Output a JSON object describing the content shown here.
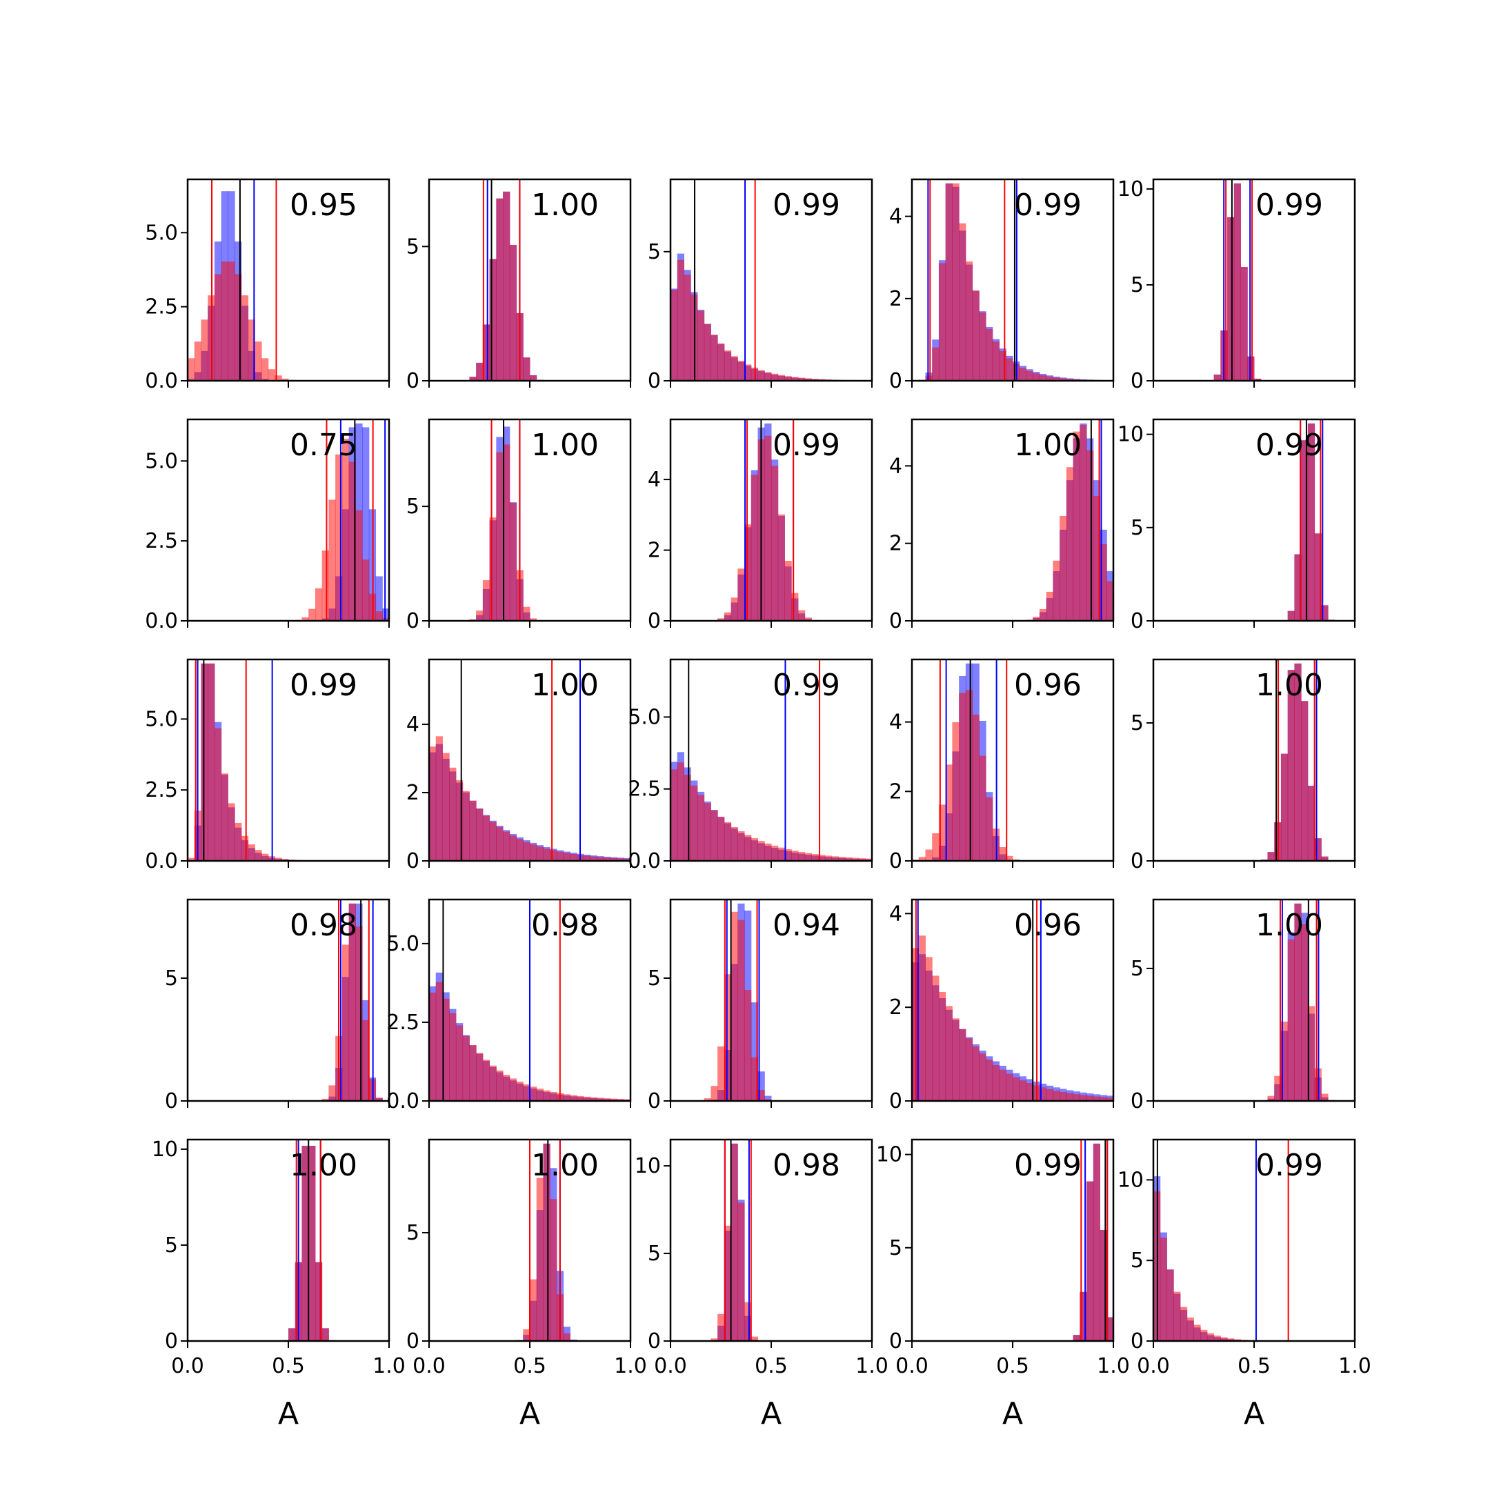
{
  "chart_data": {
    "type": "histogram-grid",
    "rows": 5,
    "cols": 5,
    "xlim": [
      0,
      1
    ],
    "xlabel": "A",
    "x_ticks": [
      "0.0",
      "0.5",
      "1.0"
    ],
    "colors": {
      "blue": "#0000ff",
      "red": "#ff0000",
      "overlap": "#bf3a6a",
      "black": "#000000"
    },
    "series": [
      {
        "color": "blue",
        "description": "histogram + interval lines"
      },
      {
        "color": "red",
        "description": "histogram + interval lines"
      }
    ],
    "panels": [
      {
        "row": 0,
        "col": 0,
        "label": "0.95",
        "ylim": [
          0,
          6.8
        ],
        "yticks": [
          0,
          2.5,
          5
        ],
        "ytick_labels": [
          "0.0",
          "2.5",
          "5.0"
        ],
        "blue": {
          "mean": 0.2,
          "sd": 0.06
        },
        "red": {
          "mean": 0.2,
          "sd": 0.1
        },
        "vlines_blue": [
          0.12,
          0.33
        ],
        "vlines_red": [
          0.12,
          0.44
        ],
        "vlines_black": [
          0.26
        ]
      },
      {
        "row": 0,
        "col": 1,
        "label": "1.00",
        "ylim": [
          0,
          7.5
        ],
        "yticks": [
          0,
          5
        ],
        "ytick_labels": [
          "0",
          "5"
        ],
        "blue": {
          "mean": 0.37,
          "sd": 0.055
        },
        "red": {
          "mean": 0.37,
          "sd": 0.055
        },
        "vlines_blue": [
          0.29,
          0.45
        ],
        "vlines_red": [
          0.27,
          0.45
        ],
        "vlines_black": [
          0.31
        ]
      },
      {
        "row": 0,
        "col": 2,
        "label": "0.99",
        "ylim": [
          0,
          7.8
        ],
        "yticks": [
          0,
          5
        ],
        "ytick_labels": [
          "0",
          "5"
        ],
        "blue": {
          "mean": 0.06,
          "sd": 0.15,
          "skew": true
        },
        "red": {
          "mean": 0.06,
          "sd": 0.16,
          "skew": true
        },
        "vlines_blue": [
          0.37
        ],
        "vlines_red": [
          0.42
        ],
        "vlines_black": [
          0.12
        ]
      },
      {
        "row": 0,
        "col": 3,
        "label": "0.99",
        "ylim": [
          0,
          4.9
        ],
        "yticks": [
          0,
          2,
          4
        ],
        "ytick_labels": [
          "0",
          "2",
          "4"
        ],
        "blue": {
          "mean": 0.2,
          "sd": 0.13,
          "skew": true
        },
        "red": {
          "mean": 0.2,
          "sd": 0.12,
          "skew": true
        },
        "vlines_blue": [
          0.08,
          0.52
        ],
        "vlines_red": [
          0.09,
          0.46
        ],
        "vlines_black": [
          0.51
        ]
      },
      {
        "row": 0,
        "col": 4,
        "label": "0.99",
        "ylim": [
          0,
          10.5
        ],
        "yticks": [
          0,
          5,
          10
        ],
        "ytick_labels": [
          "0",
          "5",
          "10"
        ],
        "blue": {
          "mean": 0.41,
          "sd": 0.035
        },
        "red": {
          "mean": 0.41,
          "sd": 0.035
        },
        "vlines_blue": [
          0.35,
          0.48
        ],
        "vlines_red": [
          0.36,
          0.49
        ],
        "vlines_black": [
          0.39
        ]
      },
      {
        "row": 1,
        "col": 0,
        "label": "0.75",
        "ylim": [
          0,
          6.3
        ],
        "yticks": [
          0,
          2.5,
          5
        ],
        "ytick_labels": [
          "0.0",
          "2.5",
          "5.0"
        ],
        "blue": {
          "mean": 0.85,
          "sd": 0.055
        },
        "red": {
          "mean": 0.78,
          "sd": 0.07
        },
        "vlines_blue": [
          0.76,
          0.98
        ],
        "vlines_red": [
          0.69,
          0.92
        ],
        "vlines_black": [
          0.83
        ]
      },
      {
        "row": 1,
        "col": 1,
        "label": "1.00",
        "ylim": [
          0,
          8.8
        ],
        "yticks": [
          0,
          5
        ],
        "ytick_labels": [
          "0",
          "5"
        ],
        "blue": {
          "mean": 0.37,
          "sd": 0.045
        },
        "red": {
          "mean": 0.37,
          "sd": 0.05
        },
        "vlines_blue": [
          0.31,
          0.45
        ],
        "vlines_red": [
          0.31,
          0.45
        ],
        "vlines_black": [
          0.37
        ]
      },
      {
        "row": 1,
        "col": 2,
        "label": "0.99",
        "ylim": [
          0,
          5.7
        ],
        "yticks": [
          0,
          2,
          4
        ],
        "ytick_labels": [
          "0",
          "2",
          "4"
        ],
        "blue": {
          "mean": 0.47,
          "sd": 0.07
        },
        "red": {
          "mean": 0.47,
          "sd": 0.075
        },
        "vlines_blue": [
          0.37,
          0.61
        ],
        "vlines_red": [
          0.38,
          0.61
        ],
        "vlines_black": [
          0.45
        ]
      },
      {
        "row": 1,
        "col": 3,
        "label": "1.00",
        "ylim": [
          0,
          5.2
        ],
        "yticks": [
          0,
          2,
          4
        ],
        "ytick_labels": [
          "0",
          "2",
          "4"
        ],
        "blue": {
          "mean": 0.85,
          "sd": 0.08
        },
        "red": {
          "mean": 0.84,
          "sd": 0.08
        },
        "vlines_blue": [
          0.94
        ],
        "vlines_red": [
          0.93
        ],
        "vlines_black": [
          0.89
        ]
      },
      {
        "row": 1,
        "col": 4,
        "label": "0.99",
        "ylim": [
          0,
          10.8
        ],
        "yticks": [
          0,
          5,
          10
        ],
        "ytick_labels": [
          "0",
          "5",
          "10"
        ],
        "blue": {
          "mean": 0.77,
          "sd": 0.035
        },
        "red": {
          "mean": 0.77,
          "sd": 0.035
        },
        "vlines_blue": [
          0.73,
          0.84
        ],
        "vlines_red": [
          0.73,
          0.83
        ],
        "vlines_black": [
          0.76
        ]
      },
      {
        "row": 2,
        "col": 0,
        "label": "0.99",
        "ylim": [
          0,
          7.1
        ],
        "yticks": [
          0,
          2.5,
          5
        ],
        "ytick_labels": [
          "0.0",
          "2.5",
          "5.0"
        ],
        "blue": {
          "mean": 0.1,
          "sd": 0.07,
          "skew": true
        },
        "red": {
          "mean": 0.1,
          "sd": 0.08,
          "skew": true
        },
        "vlines_blue": [
          0.05,
          0.42
        ],
        "vlines_red": [
          0.04,
          0.29
        ],
        "vlines_black": [
          0.08
        ]
      },
      {
        "row": 2,
        "col": 1,
        "label": "1.00",
        "ylim": [
          0,
          5.9
        ],
        "yticks": [
          0,
          2,
          4
        ],
        "ytick_labels": [
          "0",
          "2",
          "4"
        ],
        "blue": {
          "mean": 0.05,
          "sd": 0.25,
          "skew": true
        },
        "red": {
          "mean": 0.05,
          "sd": 0.23,
          "skew": true
        },
        "vlines_blue": [
          0.75
        ],
        "vlines_red": [
          0.61
        ],
        "vlines_black": [
          0.16
        ]
      },
      {
        "row": 2,
        "col": 2,
        "label": "0.99",
        "ylim": [
          0,
          7.0
        ],
        "yticks": [
          0,
          2.5,
          5
        ],
        "ytick_labels": [
          "0.0",
          "2.5",
          "5.0"
        ],
        "blue": {
          "mean": 0.05,
          "sd": 0.22,
          "skew": true
        },
        "red": {
          "mean": 0.05,
          "sd": 0.25,
          "skew": true
        },
        "vlines_blue": [
          0.57
        ],
        "vlines_red": [
          0.74
        ],
        "vlines_black": [
          0.09
        ]
      },
      {
        "row": 2,
        "col": 3,
        "label": "0.96",
        "ylim": [
          0,
          5.8
        ],
        "yticks": [
          0,
          2,
          4
        ],
        "ytick_labels": [
          "0",
          "2",
          "4"
        ],
        "blue": {
          "mean": 0.29,
          "sd": 0.06
        },
        "red": {
          "mean": 0.27,
          "sd": 0.08
        },
        "vlines_blue": [
          0.17,
          0.42
        ],
        "vlines_red": [
          0.14,
          0.47
        ],
        "vlines_black": [
          0.29
        ]
      },
      {
        "row": 2,
        "col": 4,
        "label": "1.00",
        "ylim": [
          0,
          7.3
        ],
        "yticks": [
          0,
          5
        ],
        "ytick_labels": [
          "0",
          "5"
        ],
        "blue": {
          "mean": 0.71,
          "sd": 0.05
        },
        "red": {
          "mean": 0.71,
          "sd": 0.05
        },
        "vlines_blue": [
          0.62,
          0.81
        ],
        "vlines_red": [
          0.62,
          0.8
        ],
        "vlines_black": [
          0.61
        ]
      },
      {
        "row": 3,
        "col": 0,
        "label": "0.98",
        "ylim": [
          0,
          8.2
        ],
        "yticks": [
          0,
          5
        ],
        "ytick_labels": [
          "0",
          "5"
        ],
        "blue": {
          "mean": 0.83,
          "sd": 0.04
        },
        "red": {
          "mean": 0.82,
          "sd": 0.045
        },
        "vlines_blue": [
          0.76,
          0.92
        ],
        "vlines_red": [
          0.75,
          0.9
        ],
        "vlines_black": [
          0.86
        ]
      },
      {
        "row": 3,
        "col": 1,
        "label": "0.98",
        "ylim": [
          0,
          6.4
        ],
        "yticks": [
          0,
          2.5,
          5
        ],
        "ytick_labels": [
          "0.0",
          "2.5",
          "5.0"
        ],
        "blue": {
          "mean": 0.05,
          "sd": 0.2,
          "skew": true
        },
        "red": {
          "mean": 0.05,
          "sd": 0.22,
          "skew": true
        },
        "vlines_blue": [
          0.5
        ],
        "vlines_red": [
          0.65
        ],
        "vlines_black": [
          0.07
        ]
      },
      {
        "row": 3,
        "col": 2,
        "label": "0.94",
        "ylim": [
          0,
          8.2
        ],
        "yticks": [
          0,
          5
        ],
        "ytick_labels": [
          "0",
          "5"
        ],
        "blue": {
          "mean": 0.36,
          "sd": 0.045
        },
        "red": {
          "mean": 0.33,
          "sd": 0.05
        },
        "vlines_blue": [
          0.28,
          0.44
        ],
        "vlines_red": [
          0.27,
          0.43
        ],
        "vlines_black": [
          0.3
        ]
      },
      {
        "row": 3,
        "col": 3,
        "label": "0.96",
        "ylim": [
          0,
          4.3
        ],
        "yticks": [
          0,
          2,
          4
        ],
        "ytick_labels": [
          "0",
          "2",
          "4"
        ],
        "blue": {
          "mean": 0.05,
          "sd": 0.28,
          "skew": true
        },
        "red": {
          "mean": 0.05,
          "sd": 0.24,
          "skew": true
        },
        "vlines_blue": [
          0.03,
          0.64
        ],
        "vlines_red": [
          0.02,
          0.62
        ],
        "vlines_black": [
          0.6
        ]
      },
      {
        "row": 3,
        "col": 4,
        "label": "1.00",
        "ylim": [
          0,
          7.6
        ],
        "yticks": [
          0,
          5
        ],
        "ytick_labels": [
          "0",
          "5"
        ],
        "blue": {
          "mean": 0.72,
          "sd": 0.045
        },
        "red": {
          "mean": 0.72,
          "sd": 0.05
        },
        "vlines_blue": [
          0.64,
          0.82
        ],
        "vlines_red": [
          0.63,
          0.81
        ],
        "vlines_black": [
          0.77
        ]
      },
      {
        "row": 4,
        "col": 0,
        "label": "1.00",
        "ylim": [
          0,
          10.5
        ],
        "yticks": [
          0,
          5,
          10
        ],
        "ytick_labels": [
          "0",
          "5",
          "10"
        ],
        "blue": {
          "mean": 0.6,
          "sd": 0.035
        },
        "red": {
          "mean": 0.6,
          "sd": 0.035
        },
        "vlines_blue": [
          0.55,
          0.66
        ],
        "vlines_red": [
          0.54,
          0.66
        ],
        "vlines_black": [
          0.6
        ]
      },
      {
        "row": 4,
        "col": 1,
        "label": "1.00",
        "ylim": [
          0,
          9.3
        ],
        "yticks": [
          0,
          5
        ],
        "ytick_labels": [
          "0",
          "5"
        ],
        "blue": {
          "mean": 0.59,
          "sd": 0.04
        },
        "red": {
          "mean": 0.58,
          "sd": 0.04
        },
        "vlines_blue": [
          0.5,
          0.65
        ],
        "vlines_red": [
          0.5,
          0.65
        ],
        "vlines_black": [
          0.59
        ]
      },
      {
        "row": 4,
        "col": 2,
        "label": "0.98",
        "ylim": [
          0,
          11.5
        ],
        "yticks": [
          0,
          5,
          10
        ],
        "ytick_labels": [
          "0",
          "5",
          "10"
        ],
        "blue": {
          "mean": 0.32,
          "sd": 0.03
        },
        "red": {
          "mean": 0.32,
          "sd": 0.035
        },
        "vlines_blue": [
          0.27,
          0.39
        ],
        "vlines_red": [
          0.27,
          0.4
        ],
        "vlines_black": [
          0.3
        ]
      },
      {
        "row": 4,
        "col": 3,
        "label": "0.99",
        "ylim": [
          0,
          10.8
        ],
        "yticks": [
          0,
          5,
          10
        ],
        "ytick_labels": [
          "0",
          "5",
          "10"
        ],
        "blue": {
          "mean": 0.91,
          "sd": 0.035
        },
        "red": {
          "mean": 0.91,
          "sd": 0.035
        },
        "vlines_blue": [
          0.86,
          0.97
        ],
        "vlines_red": [
          0.84,
          0.97
        ],
        "vlines_black": [
          0.96
        ]
      },
      {
        "row": 4,
        "col": 4,
        "label": "0.99",
        "ylim": [
          0,
          12.5
        ],
        "yticks": [
          0,
          5,
          10
        ],
        "ytick_labels": [
          "0",
          "5",
          "10"
        ],
        "blue": {
          "mean": 0.01,
          "sd": 0.08,
          "skew": true
        },
        "red": {
          "mean": 0.01,
          "sd": 0.09,
          "skew": true
        },
        "vlines_blue": [
          0.51
        ],
        "vlines_red": [
          0.67
        ],
        "vlines_black": [
          0.02
        ]
      }
    ]
  }
}
